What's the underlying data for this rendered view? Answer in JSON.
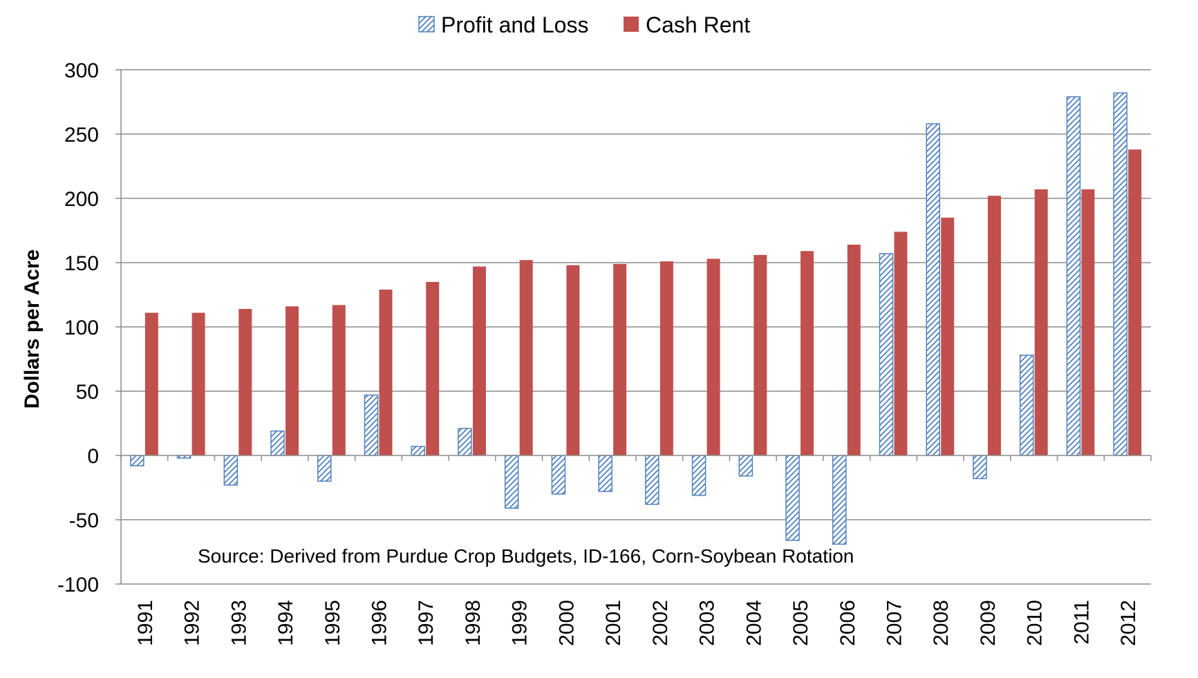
{
  "chart_data": {
    "type": "bar",
    "title": "",
    "xlabel": "",
    "ylabel": "Dollars per Acre",
    "ylim": [
      -100,
      300
    ],
    "yticks": [
      -100,
      -50,
      0,
      50,
      100,
      150,
      200,
      250,
      300
    ],
    "grid": "horizontal",
    "legend": "top-center",
    "annotation": "Source:  Derived from Purdue Crop Budgets, ID-166, Corn-Soybean Rotation",
    "categories": [
      "1991",
      "1992",
      "1993",
      "1994",
      "1995",
      "1996",
      "1997",
      "1998",
      "1999",
      "2000",
      "2001",
      "2002",
      "2003",
      "2004",
      "2005",
      "2006",
      "2007",
      "2008",
      "2009",
      "2010",
      "2011",
      "2012"
    ],
    "series": [
      {
        "name": "Profit and Loss",
        "style": "hatched",
        "color": "#4f81bd",
        "values": [
          -8,
          -2,
          -23,
          19,
          -20,
          47,
          7,
          21,
          -41,
          -30,
          -28,
          -38,
          -31,
          -16,
          -66,
          -69,
          157,
          258,
          -18,
          78,
          279,
          282
        ]
      },
      {
        "name": "Cash Rent",
        "style": "solid",
        "color": "#c0504d",
        "values": [
          111,
          111,
          114,
          116,
          117,
          129,
          135,
          147,
          152,
          148,
          149,
          151,
          153,
          156,
          159,
          164,
          174,
          185,
          202,
          207,
          207,
          238
        ]
      }
    ]
  }
}
